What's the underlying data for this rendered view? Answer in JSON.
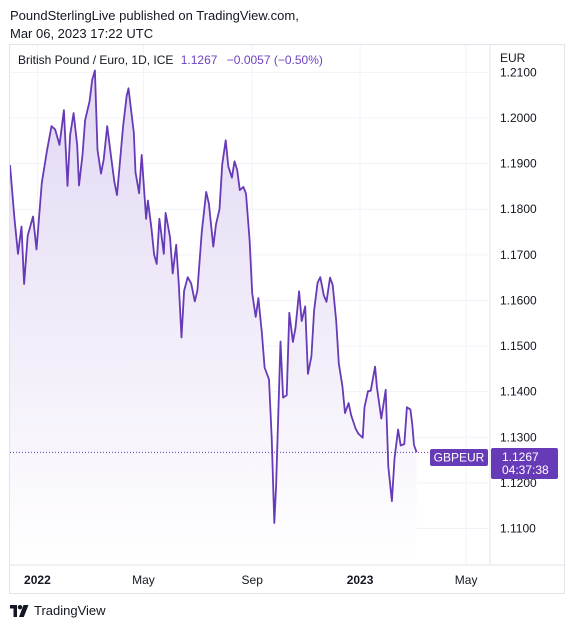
{
  "header": {
    "published_line1": "PoundSterlingLive published on TradingView.com,",
    "published_line2": "Mar 06, 2023 17:22 UTC"
  },
  "legend": {
    "symbol": "British Pound / Euro, 1D, ICE",
    "last": "1.1267",
    "change": "−0.0057 (−0.50%)"
  },
  "price_scale": {
    "unit": "EUR"
  },
  "badge": {
    "ticker": "GBPEUR",
    "price": "1.1267",
    "countdown": "04:37:38"
  },
  "colors": {
    "line": "#673ab7",
    "badge_bg": "#673ab7",
    "fill_top": "#e2d8f3",
    "fill_bottom": "#ffffff"
  },
  "branding": {
    "name": "TradingView"
  },
  "chart_data": {
    "type": "area",
    "ylim": [
      1.102,
      1.216
    ],
    "yticks": [
      1.11,
      1.12,
      1.13,
      1.14,
      1.15,
      1.16,
      1.17,
      1.18,
      1.19,
      1.2,
      1.21
    ],
    "ytick_labels": [
      "1.1100",
      "1.1200",
      "1.1300",
      "1.1400",
      "1.1500",
      "1.1600",
      "1.1700",
      "1.1800",
      "1.1900",
      "1.2000",
      "1.2100"
    ],
    "xticks": [
      {
        "label": "2022",
        "date": "2022-01-01",
        "bold": true
      },
      {
        "label": "May",
        "date": "2022-05-01",
        "bold": false
      },
      {
        "label": "Sep",
        "date": "2022-09-01",
        "bold": false
      },
      {
        "label": "2023",
        "date": "2023-01-01",
        "bold": true
      },
      {
        "label": "May",
        "date": "2023-05-01",
        "bold": false
      }
    ],
    "last_value": 1.1267,
    "series": [
      {
        "values": [
          [
            "2021-12-01",
            1.1897
          ],
          [
            "2021-12-06",
            1.1781
          ],
          [
            "2021-12-10",
            1.1702
          ],
          [
            "2021-12-14",
            1.1762
          ],
          [
            "2021-12-17",
            1.1636
          ],
          [
            "2021-12-21",
            1.1742
          ],
          [
            "2021-12-27",
            1.1784
          ],
          [
            "2021-12-31",
            1.1712
          ],
          [
            "2022-01-06",
            1.1858
          ],
          [
            "2022-01-12",
            1.193
          ],
          [
            "2022-01-17",
            1.1982
          ],
          [
            "2022-01-21",
            1.1975
          ],
          [
            "2022-01-26",
            1.1941
          ],
          [
            "2022-01-31",
            1.2017
          ],
          [
            "2022-02-04",
            1.1851
          ],
          [
            "2022-02-07",
            1.1962
          ],
          [
            "2022-02-11",
            1.2011
          ],
          [
            "2022-02-15",
            1.194
          ],
          [
            "2022-02-17",
            1.1852
          ],
          [
            "2022-02-21",
            1.1919
          ],
          [
            "2022-02-24",
            1.1995
          ],
          [
            "2022-03-01",
            1.2037
          ],
          [
            "2022-03-04",
            1.2084
          ],
          [
            "2022-03-07",
            1.2104
          ],
          [
            "2022-03-10",
            1.193
          ],
          [
            "2022-03-14",
            1.1878
          ],
          [
            "2022-03-17",
            1.1909
          ],
          [
            "2022-03-21",
            1.1982
          ],
          [
            "2022-03-25",
            1.192
          ],
          [
            "2022-03-29",
            1.1861
          ],
          [
            "2022-04-01",
            1.1831
          ],
          [
            "2022-04-04",
            1.1895
          ],
          [
            "2022-04-08",
            1.1982
          ],
          [
            "2022-04-12",
            1.2049
          ],
          [
            "2022-04-14",
            1.2065
          ],
          [
            "2022-04-20",
            1.1968
          ],
          [
            "2022-04-22",
            1.1881
          ],
          [
            "2022-04-26",
            1.1835
          ],
          [
            "2022-04-29",
            1.1919
          ],
          [
            "2022-05-04",
            1.1779
          ],
          [
            "2022-05-06",
            1.1819
          ],
          [
            "2022-05-10",
            1.1759
          ],
          [
            "2022-05-13",
            1.1701
          ],
          [
            "2022-05-16",
            1.168
          ],
          [
            "2022-05-19",
            1.1779
          ],
          [
            "2022-05-24",
            1.1702
          ],
          [
            "2022-05-26",
            1.1792
          ],
          [
            "2022-05-31",
            1.1739
          ],
          [
            "2022-06-03",
            1.1659
          ],
          [
            "2022-06-07",
            1.1722
          ],
          [
            "2022-06-10",
            1.1635
          ],
          [
            "2022-06-13",
            1.1519
          ],
          [
            "2022-06-16",
            1.1621
          ],
          [
            "2022-06-20",
            1.1651
          ],
          [
            "2022-06-24",
            1.1637
          ],
          [
            "2022-06-28",
            1.1598
          ],
          [
            "2022-07-01",
            1.1622
          ],
          [
            "2022-07-06",
            1.1751
          ],
          [
            "2022-07-11",
            1.1838
          ],
          [
            "2022-07-14",
            1.1812
          ],
          [
            "2022-07-19",
            1.1718
          ],
          [
            "2022-07-22",
            1.1767
          ],
          [
            "2022-07-26",
            1.18
          ],
          [
            "2022-07-29",
            1.1898
          ],
          [
            "2022-08-02",
            1.1951
          ],
          [
            "2022-08-05",
            1.1894
          ],
          [
            "2022-08-09",
            1.1869
          ],
          [
            "2022-08-12",
            1.1905
          ],
          [
            "2022-08-15",
            1.1886
          ],
          [
            "2022-08-18",
            1.1842
          ],
          [
            "2022-08-22",
            1.1849
          ],
          [
            "2022-08-25",
            1.1834
          ],
          [
            "2022-08-29",
            1.1732
          ],
          [
            "2022-09-01",
            1.1616
          ],
          [
            "2022-09-05",
            1.1564
          ],
          [
            "2022-09-08",
            1.1605
          ],
          [
            "2022-09-12",
            1.1528
          ],
          [
            "2022-09-15",
            1.1453
          ],
          [
            "2022-09-20",
            1.1427
          ],
          [
            "2022-09-23",
            1.1299
          ],
          [
            "2022-09-26",
            1.1112
          ],
          [
            "2022-09-28",
            1.1193
          ],
          [
            "2022-10-03",
            1.151
          ],
          [
            "2022-10-06",
            1.1387
          ],
          [
            "2022-10-10",
            1.1392
          ],
          [
            "2022-10-13",
            1.1573
          ],
          [
            "2022-10-17",
            1.1509
          ],
          [
            "2022-10-20",
            1.154
          ],
          [
            "2022-10-24",
            1.162
          ],
          [
            "2022-10-27",
            1.1555
          ],
          [
            "2022-10-31",
            1.1587
          ],
          [
            "2022-11-03",
            1.1439
          ],
          [
            "2022-11-07",
            1.1477
          ],
          [
            "2022-11-10",
            1.1578
          ],
          [
            "2022-11-14",
            1.1639
          ],
          [
            "2022-11-17",
            1.1651
          ],
          [
            "2022-11-21",
            1.1611
          ],
          [
            "2022-11-24",
            1.1597
          ],
          [
            "2022-11-28",
            1.165
          ],
          [
            "2022-12-01",
            1.1634
          ],
          [
            "2022-12-05",
            1.1555
          ],
          [
            "2022-12-08",
            1.1462
          ],
          [
            "2022-12-12",
            1.1412
          ],
          [
            "2022-12-15",
            1.1353
          ],
          [
            "2022-12-19",
            1.1375
          ],
          [
            "2022-12-22",
            1.1348
          ],
          [
            "2022-12-27",
            1.1319
          ],
          [
            "2022-12-30",
            1.1308
          ],
          [
            "2023-01-04",
            1.1299
          ],
          [
            "2023-01-06",
            1.1366
          ],
          [
            "2023-01-10",
            1.1401
          ],
          [
            "2023-01-13",
            1.1402
          ],
          [
            "2023-01-18",
            1.1455
          ],
          [
            "2023-01-20",
            1.141
          ],
          [
            "2023-01-25",
            1.1341
          ],
          [
            "2023-01-30",
            1.1404
          ],
          [
            "2023-02-02",
            1.1236
          ],
          [
            "2023-02-06",
            1.116
          ],
          [
            "2023-02-09",
            1.1253
          ],
          [
            "2023-02-13",
            1.1317
          ],
          [
            "2023-02-16",
            1.1282
          ],
          [
            "2023-02-20",
            1.1285
          ],
          [
            "2023-02-23",
            1.1366
          ],
          [
            "2023-02-27",
            1.1361
          ],
          [
            "2023-03-01",
            1.133
          ],
          [
            "2023-03-03",
            1.1283
          ],
          [
            "2023-03-06",
            1.1267
          ]
        ]
      }
    ]
  }
}
